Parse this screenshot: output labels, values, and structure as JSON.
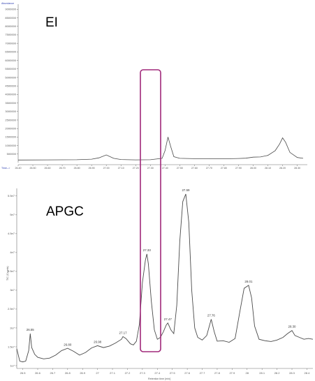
{
  "colors": {
    "trace": "#4a4a4a",
    "axis": "#6f6f6f",
    "highlight_box": "#a0287a",
    "ei_label_blue": "#2a3cb0"
  },
  "chart_data": [
    {
      "type": "line",
      "label": "EI",
      "ylabel": "Abundance",
      "xlabel": "Time-->",
      "y_ticks": [
        "500000",
        "1000000",
        "1500000",
        "2000000",
        "2500000",
        "3000000",
        "3500000",
        "4000000",
        "4500000",
        "5000000",
        "5500000",
        "6000000",
        "6500000",
        "7000000",
        "7500000",
        "8000000",
        "8500000",
        "9000000"
      ],
      "x_ticks": [
        "26.40",
        "26.50",
        "26.60",
        "26.70",
        "26.80",
        "26.90",
        "27.00",
        "27.10",
        "27.20",
        "27.30",
        "27.40",
        "27.50",
        "27.60",
        "27.70",
        "27.80",
        "27.90",
        "28.00",
        "28.10",
        "28.20",
        "28.30"
      ],
      "xlim": [
        26.4,
        28.34
      ],
      "ylim": [
        0,
        9300000
      ],
      "series": [
        {
          "x": [
            26.4,
            26.6,
            26.8,
            26.9,
            26.95,
            27.0,
            27.05,
            27.1,
            27.2,
            27.3,
            27.38,
            27.4,
            27.42,
            27.44,
            27.46,
            27.5,
            27.6,
            27.7,
            27.8,
            27.9,
            27.95,
            28.0,
            28.05,
            28.1,
            28.15,
            28.18,
            28.2,
            28.22,
            28.25,
            28.3,
            28.34
          ],
          "y": [
            150000,
            160000,
            170000,
            200000,
            280000,
            450000,
            250000,
            180000,
            160000,
            170000,
            250000,
            700000,
            1500000,
            900000,
            350000,
            250000,
            230000,
            230000,
            220000,
            240000,
            260000,
            320000,
            330000,
            420000,
            700000,
            1100000,
            1450000,
            1200000,
            600000,
            300000,
            250000
          ]
        }
      ]
    },
    {
      "type": "line",
      "label": "APGC",
      "ylabel": "TIC (Counts)",
      "xlabel": "Retention time [min]",
      "y_ticks": [
        "1e7",
        "1.5e7",
        "2e7",
        "2.5e7",
        "3e7",
        "3.5e7",
        "4e7",
        "4.5e7",
        "5e7",
        "5.5e7"
      ],
      "x_ticks": [
        "26.5",
        "26.6",
        "26.7",
        "26.8",
        "26.9",
        "27",
        "27.1",
        "27.2",
        "27.3",
        "27.4",
        "27.5",
        "27.6",
        "27.7",
        "27.8",
        "27.9",
        "28",
        "28.1",
        "28.2",
        "28.3",
        "28.4"
      ],
      "xlim": [
        26.46,
        28.44
      ],
      "ylim": [
        10000000.0,
        57000000.0
      ],
      "peak_labels": [
        {
          "x": 26.55,
          "y": 18700000.0,
          "text": "26.55"
        },
        {
          "x": 26.8,
          "y": 14700000.0,
          "text": "26.80"
        },
        {
          "x": 27.0,
          "y": 15500000.0,
          "text": "26.98"
        },
        {
          "x": 27.17,
          "y": 17900000.0,
          "text": "27.17"
        },
        {
          "x": 27.33,
          "y": 39800000.0,
          "text": "27.33"
        },
        {
          "x": 27.47,
          "y": 21500000.0,
          "text": "27.47"
        },
        {
          "x": 27.59,
          "y": 55700000.0,
          "text": "27.59"
        },
        {
          "x": 27.76,
          "y": 22500000.0,
          "text": "27.76"
        },
        {
          "x": 28.01,
          "y": 31500000.0,
          "text": "28.01"
        },
        {
          "x": 28.3,
          "y": 19500000.0,
          "text": "28.30"
        }
      ],
      "series": [
        {
          "x": [
            26.46,
            26.48,
            26.5,
            26.52,
            26.54,
            26.55,
            26.56,
            26.58,
            26.6,
            26.64,
            26.68,
            26.72,
            26.76,
            26.8,
            26.84,
            26.88,
            26.92,
            26.96,
            27.0,
            27.04,
            27.08,
            27.12,
            27.16,
            27.17,
            27.19,
            27.22,
            27.24,
            27.26,
            27.28,
            27.3,
            27.32,
            27.33,
            27.34,
            27.36,
            27.38,
            27.4,
            27.42,
            27.44,
            27.46,
            27.47,
            27.49,
            27.51,
            27.53,
            27.55,
            27.57,
            27.59,
            27.61,
            27.63,
            27.65,
            27.67,
            27.7,
            27.73,
            27.76,
            27.78,
            27.8,
            27.84,
            27.88,
            27.92,
            27.95,
            27.98,
            28.01,
            28.03,
            28.05,
            28.08,
            28.12,
            28.16,
            28.2,
            28.24,
            28.27,
            28.3,
            28.32,
            28.35,
            28.38,
            28.41,
            28.44
          ],
          "y": [
            14500000.0,
            11200000.0,
            11000000.0,
            11200000.0,
            14000000.0,
            18500000.0,
            14800000.0,
            13000000.0,
            12200000.0,
            11800000.0,
            12000000.0,
            12800000.0,
            14000000.0,
            14600000.0,
            13800000.0,
            12800000.0,
            13500000.0,
            14700000.0,
            15300000.0,
            14800000.0,
            15200000.0,
            16000000.0,
            17000000.0,
            17700000.0,
            17200000.0,
            15800000.0,
            15500000.0,
            16500000.0,
            21000000.0,
            32000000.0,
            38000000.0,
            39600000.0,
            37000000.0,
            27000000.0,
            19500000.0,
            17000000.0,
            17500000.0,
            19000000.0,
            20800000.0,
            21300000.0,
            19500000.0,
            18500000.0,
            26000000.0,
            43000000.0,
            53500000.0,
            55500000.0,
            48000000.0,
            30000000.0,
            20000000.0,
            17500000.0,
            16800000.0,
            18000000.0,
            22300000.0,
            19000000.0,
            16500000.0,
            16600000.0,
            16200000.0,
            17200000.0,
            24000000.0,
            30500000.0,
            31300000.0,
            28000000.0,
            20500000.0,
            17000000.0,
            16600000.0,
            16400000.0,
            16800000.0,
            17500000.0,
            18500000.0,
            19300000.0,
            18000000.0,
            17500000.0,
            17000000.0,
            17200000.0,
            17000000.0
          ]
        }
      ]
    }
  ]
}
